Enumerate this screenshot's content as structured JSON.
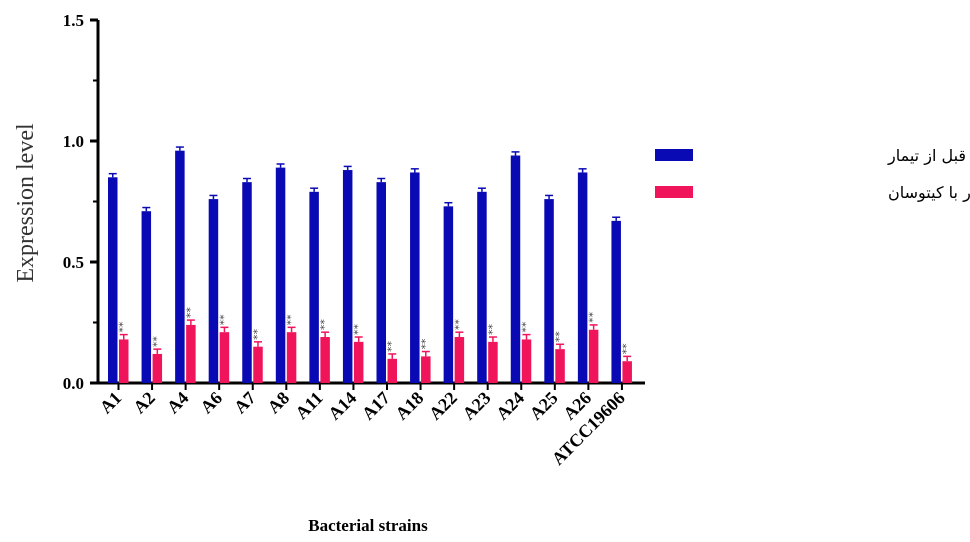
{
  "chart_data": {
    "type": "bar",
    "ylabel": "Expression level",
    "xlabel": "Bacterial strains",
    "ylim": [
      0,
      1.5
    ],
    "yticks": [
      "0.0",
      "0.5",
      "1.0",
      "1.5"
    ],
    "categories": [
      "A1",
      "A2",
      "A4",
      "A6",
      "A7",
      "A8",
      "A11",
      "A14",
      "A17",
      "A18",
      "A22",
      "A23",
      "A24",
      "A25",
      "A26",
      "ATCC19606"
    ],
    "series": [
      {
        "name": "جذب نوری قبل از تیمار",
        "color": "#0a0ab5",
        "values": [
          0.85,
          0.71,
          0.96,
          0.76,
          0.83,
          0.89,
          0.79,
          0.88,
          0.83,
          0.87,
          0.73,
          0.79,
          0.94,
          0.76,
          0.87,
          0.67
        ],
        "errors": [
          0.015,
          0.015,
          0.015,
          0.015,
          0.015,
          0.015,
          0.015,
          0.015,
          0.015,
          0.015,
          0.015,
          0.015,
          0.015,
          0.015,
          0.015,
          0.015
        ]
      },
      {
        "name": "جذب نوری پس از تیمار با کیتوسان",
        "color": "#f0145a",
        "values": [
          0.18,
          0.12,
          0.24,
          0.21,
          0.15,
          0.21,
          0.19,
          0.17,
          0.1,
          0.11,
          0.19,
          0.17,
          0.18,
          0.14,
          0.22,
          0.09
        ],
        "errors": [
          0.02,
          0.02,
          0.02,
          0.02,
          0.02,
          0.02,
          0.02,
          0.02,
          0.02,
          0.02,
          0.02,
          0.02,
          0.02,
          0.02,
          0.02,
          0.02
        ],
        "annotation": "**"
      }
    ],
    "legend_position": "right"
  }
}
